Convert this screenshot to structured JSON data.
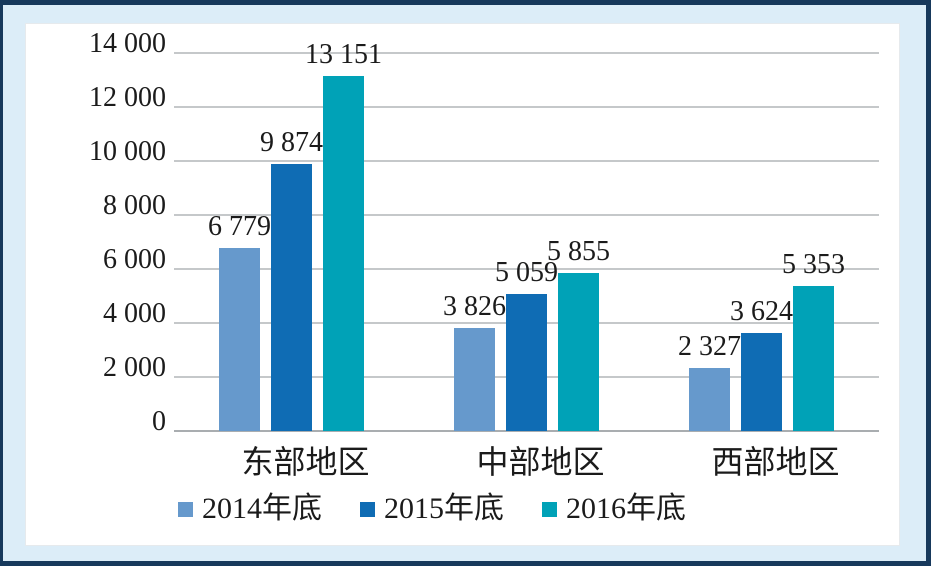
{
  "chart_data": {
    "type": "bar",
    "title": "",
    "xlabel": "",
    "ylabel": "",
    "categories": [
      "东部地区",
      "中部地区",
      "西部地区"
    ],
    "series": [
      {
        "name": "2014年底",
        "color": "#6699CC",
        "values": [
          6779,
          3826,
          2327
        ],
        "value_labels": [
          "6 779",
          "3 826",
          "2 327"
        ]
      },
      {
        "name": "2015年底",
        "color": "#0F6CB4",
        "values": [
          9874,
          5059,
          3624
        ],
        "value_labels": [
          "9 874",
          "5 059",
          "3 624"
        ]
      },
      {
        "name": "2016年底",
        "color": "#00A2B7",
        "values": [
          13151,
          5855,
          5353
        ],
        "value_labels": [
          "13 151",
          "5 855",
          "5 353"
        ]
      }
    ],
    "ylim": [
      0,
      14000
    ],
    "yticks": [
      {
        "value": 0,
        "label": "0"
      },
      {
        "value": 2000,
        "label": "2 000"
      },
      {
        "value": 4000,
        "label": "4 000"
      },
      {
        "value": 6000,
        "label": "6 000"
      },
      {
        "value": 8000,
        "label": "8 000"
      },
      {
        "value": 10000,
        "label": "10 000"
      },
      {
        "value": 12000,
        "label": "12 000"
      },
      {
        "value": 14000,
        "label": "14 000"
      }
    ],
    "grid": true,
    "legend_position": "bottom"
  },
  "colors": {
    "frame_border": "#17395C",
    "frame_background": "#DCEDF8",
    "panel_background": "#FFFFFF",
    "gridline": "#C5C8CA",
    "zero_line": "#A9ADB0",
    "text": "#1B1B1B"
  }
}
